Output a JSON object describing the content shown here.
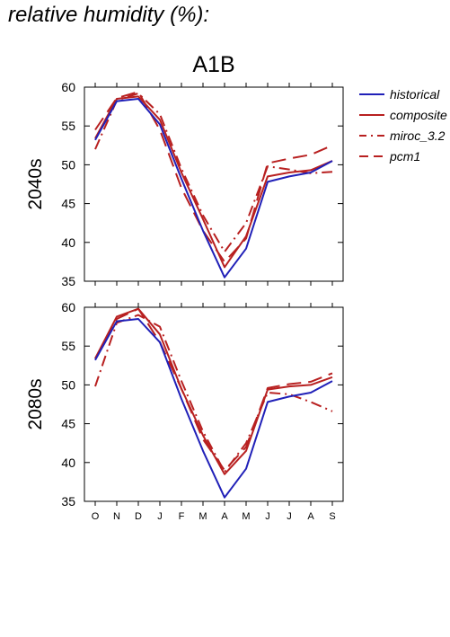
{
  "heading": "relative humidity (%):",
  "chart_data": {
    "type": "line",
    "title": "A1B",
    "x_categories": [
      "O",
      "N",
      "D",
      "J",
      "F",
      "M",
      "A",
      "M",
      "J",
      "J",
      "A",
      "S"
    ],
    "ylim": [
      35,
      60
    ],
    "y_ticks": [
      35,
      40,
      45,
      50,
      55,
      60
    ],
    "legend": {
      "placement": "top-right, outside plot",
      "entries": [
        {
          "label": "historical",
          "color": "#2020b8",
          "dash": "solid"
        },
        {
          "label": "composite",
          "color": "#b82020",
          "dash": "solid"
        },
        {
          "label": "miroc_3.2",
          "color": "#b82020",
          "dash": "dash-dot"
        },
        {
          "label": "pcm1",
          "color": "#b82020",
          "dash": "long-dash"
        }
      ]
    },
    "panels": [
      {
        "ylabel": "2040s",
        "series": [
          {
            "name": "historical",
            "values": [
              53.2,
              58.2,
              58.5,
              55.2,
              48.2,
              41.5,
              35.5,
              39.2,
              47.8,
              48.5,
              49.0,
              50.5
            ]
          },
          {
            "name": "composite",
            "values": [
              53.4,
              58.5,
              58.8,
              55.8,
              49.0,
              43.0,
              36.8,
              40.8,
              48.5,
              49.0,
              49.3,
              50.5
            ]
          },
          {
            "name": "miroc_3.2",
            "values": [
              52.0,
              58.3,
              59.2,
              56.5,
              49.5,
              43.5,
              38.8,
              42.5,
              49.8,
              49.4,
              48.9,
              49.1
            ]
          },
          {
            "name": "pcm1",
            "values": [
              54.5,
              58.6,
              59.4,
              54.5,
              47.0,
              41.5,
              37.5,
              40.5,
              50.2,
              50.8,
              51.3,
              52.5
            ]
          }
        ]
      },
      {
        "ylabel": "2080s",
        "series": [
          {
            "name": "historical",
            "values": [
              53.2,
              58.2,
              58.5,
              55.5,
              48.2,
              41.5,
              35.5,
              39.2,
              47.8,
              48.5,
              49.0,
              50.5
            ]
          },
          {
            "name": "composite",
            "values": [
              53.4,
              58.8,
              59.8,
              56.5,
              49.5,
              43.5,
              38.5,
              41.5,
              49.4,
              49.8,
              50.0,
              51.0
            ]
          },
          {
            "name": "miroc_3.2",
            "values": [
              49.8,
              58.0,
              59.0,
              57.5,
              50.5,
              44.0,
              38.8,
              42.5,
              49.0,
              48.8,
              47.8,
              46.6
            ]
          },
          {
            "name": "pcm1",
            "values": [
              53.4,
              58.5,
              59.8,
              55.5,
              49.5,
              43.0,
              39.0,
              42.0,
              49.6,
              50.1,
              50.4,
              51.5
            ]
          }
        ]
      }
    ]
  }
}
